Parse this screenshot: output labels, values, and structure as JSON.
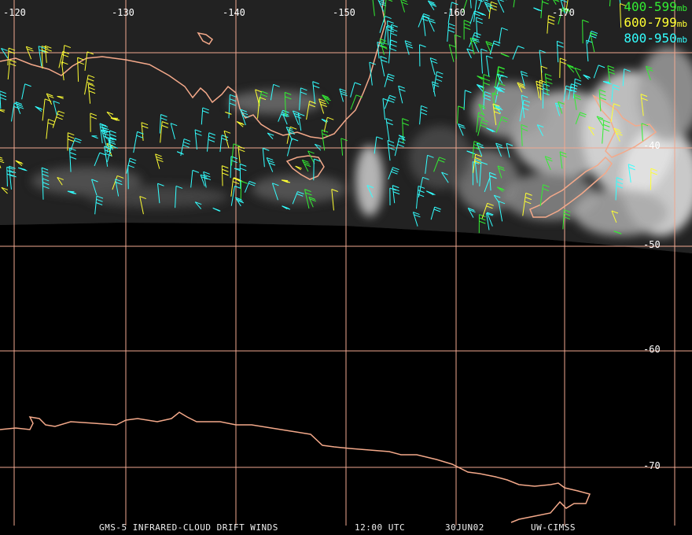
{
  "legend": [
    {
      "label": "400-599",
      "unit": "mb",
      "color": "#33ee33"
    },
    {
      "label": "600-799",
      "unit": "mb",
      "color": "#ffff33"
    },
    {
      "label": "800-950",
      "unit": "mb",
      "color": "#33ffff"
    }
  ],
  "longitude_labels": [
    "-120",
    "-130",
    "-140",
    "-150",
    "-160",
    "-170"
  ],
  "latitude_labels": [
    "-40",
    "-50",
    "-60",
    "-70"
  ],
  "footer": {
    "product": "GMS-5 INFRARED-CLOUD DRIFT WINDS",
    "time": "12:00 UTC",
    "date": "30JUN02",
    "source": "UW-CIMSS"
  },
  "colors": {
    "grid": "#f0a890",
    "coast": "#f4a98a",
    "background": "#000000"
  }
}
